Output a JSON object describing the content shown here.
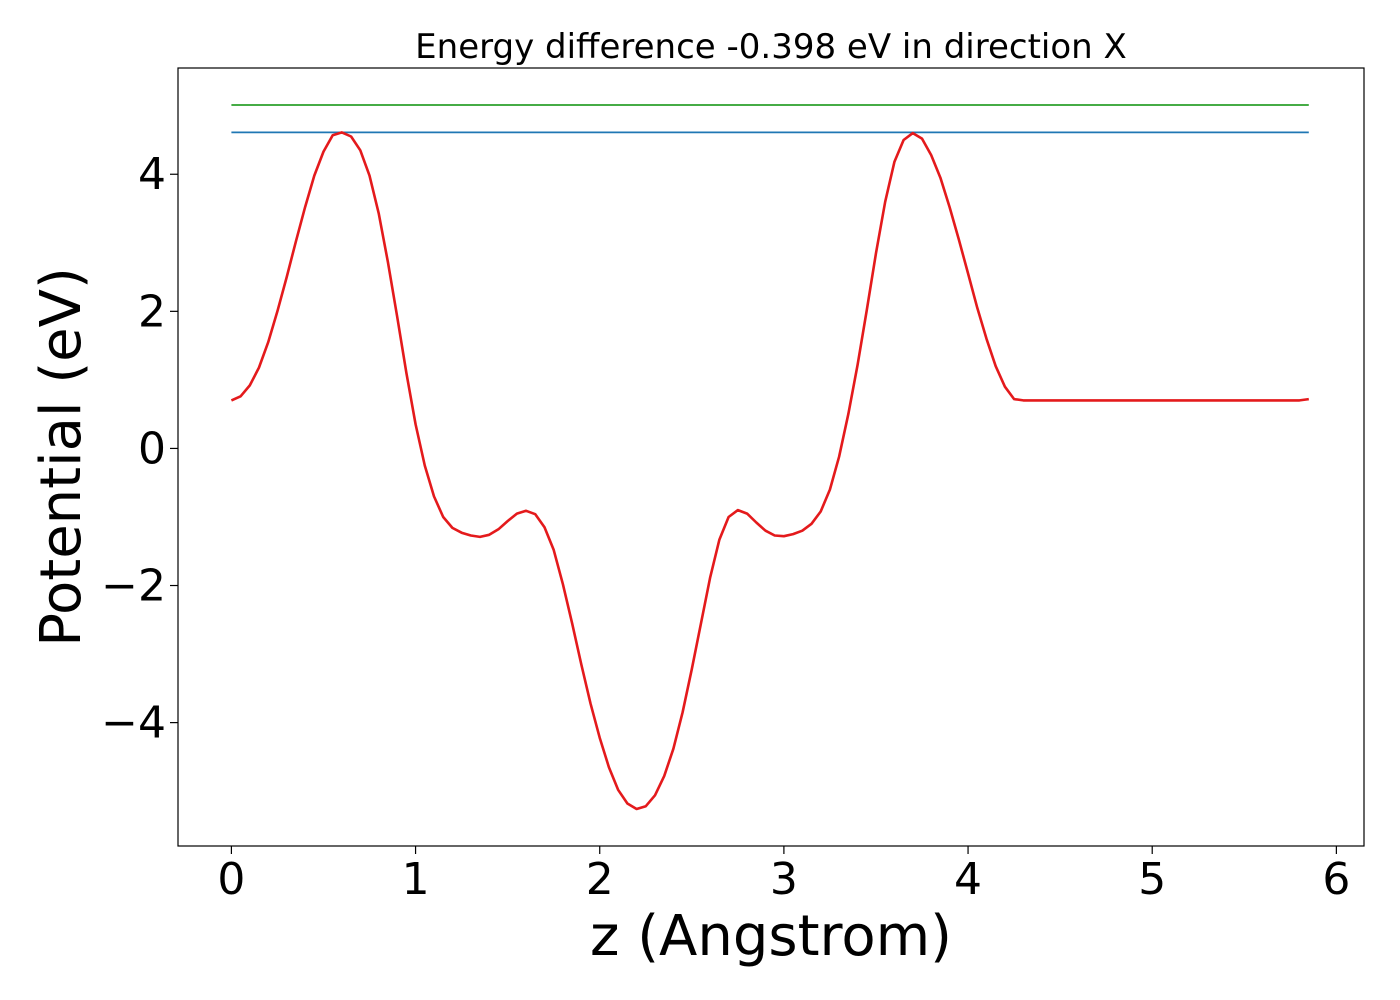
{
  "chart_data": {
    "type": "line",
    "title": "Energy difference -0.398 eV in direction X",
    "xlabel": "z (Angstrom)",
    "ylabel": "Potential (eV)",
    "xlim": [
      -0.29,
      6.15
    ],
    "ylim": [
      -5.8,
      5.55
    ],
    "xticks": [
      0,
      1,
      2,
      3,
      4,
      5,
      6
    ],
    "yticks": [
      -4,
      -2,
      0,
      2,
      4
    ],
    "grid": false,
    "colors": {
      "potential": "#e41a1c",
      "level_blue": "#1f77b4",
      "level_green": "#2ca02c"
    },
    "series": [
      {
        "color": "#1f77b4",
        "x": [
          0,
          5.85
        ],
        "y": [
          4.61,
          4.61
        ]
      },
      {
        "color": "#2ca02c",
        "x": [
          0,
          5.85
        ],
        "y": [
          5.01,
          5.01
        ]
      },
      {
        "color": "#e41a1c",
        "x": [
          0.0,
          0.05,
          0.1,
          0.15,
          0.2,
          0.25,
          0.3,
          0.35,
          0.4,
          0.45,
          0.5,
          0.55,
          0.6,
          0.65,
          0.7,
          0.75,
          0.8,
          0.85,
          0.9,
          0.95,
          1.0,
          1.05,
          1.1,
          1.15,
          1.2,
          1.25,
          1.3,
          1.35,
          1.4,
          1.45,
          1.5,
          1.55,
          1.6,
          1.65,
          1.7,
          1.75,
          1.8,
          1.85,
          1.9,
          1.95,
          2.0,
          2.05,
          2.1,
          2.15,
          2.2,
          2.25,
          2.3,
          2.35,
          2.4,
          2.45,
          2.5,
          2.55,
          2.6,
          2.65,
          2.7,
          2.75,
          2.8,
          2.85,
          2.9,
          2.95,
          3.0,
          3.05,
          3.1,
          3.15,
          3.2,
          3.25,
          3.3,
          3.35,
          3.4,
          3.45,
          3.5,
          3.55,
          3.6,
          3.65,
          3.7,
          3.75,
          3.8,
          3.85,
          3.9,
          3.95,
          4.0,
          4.05,
          4.1,
          4.15,
          4.2,
          4.25,
          4.3,
          4.35,
          4.4,
          4.45,
          4.5,
          4.55,
          4.6,
          4.65,
          4.7,
          4.75,
          4.8,
          4.85,
          4.9,
          4.95,
          5.0,
          5.05,
          5.1,
          5.15,
          5.2,
          5.25,
          5.3,
          5.35,
          5.4,
          5.45,
          5.5,
          5.55,
          5.6,
          5.65,
          5.7,
          5.75,
          5.8,
          5.85
        ],
        "y": [
          0.7,
          0.76,
          0.92,
          1.18,
          1.55,
          2.0,
          2.5,
          3.02,
          3.52,
          3.98,
          4.33,
          4.57,
          4.61,
          4.55,
          4.35,
          3.98,
          3.43,
          2.72,
          1.92,
          1.1,
          0.35,
          -0.25,
          -0.7,
          -1.0,
          -1.16,
          -1.23,
          -1.27,
          -1.29,
          -1.26,
          -1.18,
          -1.06,
          -0.95,
          -0.91,
          -0.96,
          -1.15,
          -1.48,
          -1.98,
          -2.55,
          -3.15,
          -3.72,
          -4.22,
          -4.65,
          -4.98,
          -5.18,
          -5.26,
          -5.22,
          -5.06,
          -4.78,
          -4.38,
          -3.85,
          -3.22,
          -2.55,
          -1.88,
          -1.33,
          -1.0,
          -0.9,
          -0.95,
          -1.08,
          -1.2,
          -1.27,
          -1.28,
          -1.25,
          -1.2,
          -1.1,
          -0.92,
          -0.6,
          -0.12,
          0.5,
          1.22,
          2.02,
          2.85,
          3.6,
          4.18,
          4.5,
          4.6,
          4.52,
          4.28,
          3.95,
          3.52,
          3.05,
          2.55,
          2.05,
          1.6,
          1.2,
          0.9,
          0.72,
          0.7,
          0.7,
          0.7,
          0.7,
          0.7,
          0.7,
          0.7,
          0.7,
          0.7,
          0.7,
          0.7,
          0.7,
          0.7,
          0.7,
          0.7,
          0.7,
          0.7,
          0.7,
          0.7,
          0.7,
          0.7,
          0.7,
          0.7,
          0.7,
          0.7,
          0.7,
          0.7,
          0.7,
          0.7,
          0.7,
          0.7,
          0.72
        ]
      }
    ]
  }
}
